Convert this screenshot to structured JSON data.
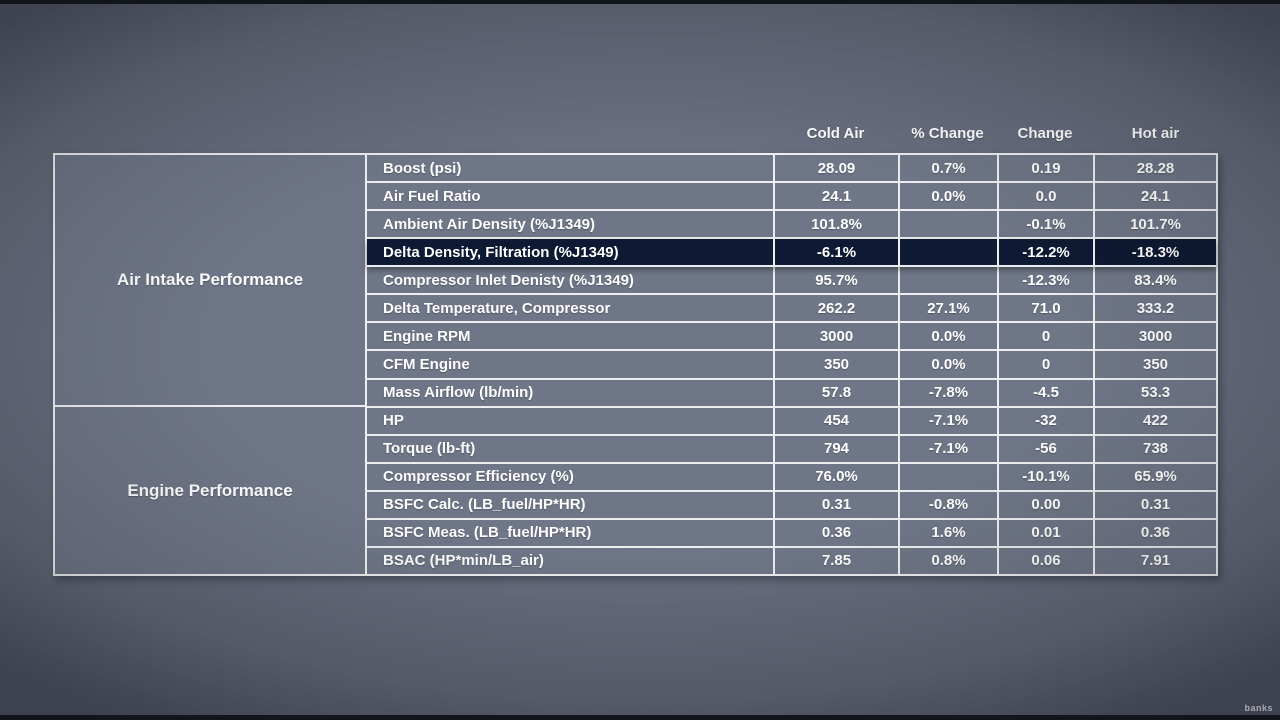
{
  "watermark": "banks",
  "colors": {
    "page_background": "#676d7e",
    "cell_background": "#6f7687",
    "highlight_row_background": "#0e1a33",
    "grid_border": "#eeeef0",
    "text": "#ffffff",
    "letterbox": "#13151d"
  },
  "chart_data": {
    "type": "table",
    "column_headers": [
      "Cold Air",
      "% Change",
      "Change",
      "Hot air"
    ],
    "row_groups": [
      {
        "label": "Air Intake Performance",
        "row_count": 9
      },
      {
        "label": "Engine Performance",
        "row_count": 6
      }
    ],
    "rows": [
      {
        "label": "Boost (psi)",
        "values": [
          "28.09",
          "0.7%",
          "0.19",
          "28.28"
        ],
        "highlighted": false
      },
      {
        "label": "Air Fuel Ratio",
        "values": [
          "24.1",
          "0.0%",
          "0.0",
          "24.1"
        ],
        "highlighted": false
      },
      {
        "label": "Ambient Air Density (%J1349)",
        "values": [
          "101.8%",
          "",
          "-0.1%",
          "101.7%"
        ],
        "highlighted": false
      },
      {
        "label": "Delta Density, Filtration (%J1349)",
        "values": [
          "-6.1%",
          "",
          "-12.2%",
          "-18.3%"
        ],
        "highlighted": true
      },
      {
        "label": "Compressor Inlet Denisty (%J1349)",
        "values": [
          "95.7%",
          "",
          "-12.3%",
          "83.4%"
        ],
        "highlighted": false
      },
      {
        "label": "Delta Temperature, Compressor",
        "values": [
          "262.2",
          "27.1%",
          "71.0",
          "333.2"
        ],
        "highlighted": false
      },
      {
        "label": "Engine RPM",
        "values": [
          "3000",
          "0.0%",
          "0",
          "3000"
        ],
        "highlighted": false
      },
      {
        "label": "CFM Engine",
        "values": [
          "350",
          "0.0%",
          "0",
          "350"
        ],
        "highlighted": false
      },
      {
        "label": "Mass Airflow (lb/min)",
        "values": [
          "57.8",
          "-7.8%",
          "-4.5",
          "53.3"
        ],
        "highlighted": false
      },
      {
        "label": "HP",
        "values": [
          "454",
          "-7.1%",
          "-32",
          "422"
        ],
        "highlighted": false
      },
      {
        "label": "Torque (lb-ft)",
        "values": [
          "794",
          "-7.1%",
          "-56",
          "738"
        ],
        "highlighted": false
      },
      {
        "label": "Compressor Efficiency (%)",
        "values": [
          "76.0%",
          "",
          "-10.1%",
          "65.9%"
        ],
        "highlighted": false
      },
      {
        "label": "BSFC Calc. (LB_fuel/HP*HR)",
        "values": [
          "0.31",
          "-0.8%",
          "0.00",
          "0.31"
        ],
        "highlighted": false
      },
      {
        "label": "BSFC Meas. (LB_fuel/HP*HR)",
        "values": [
          "0.36",
          "1.6%",
          "0.01",
          "0.36"
        ],
        "highlighted": false
      },
      {
        "label": "BSAC (HP*min/LB_air)",
        "values": [
          "7.85",
          "0.8%",
          "0.06",
          "7.91"
        ],
        "highlighted": false
      }
    ]
  }
}
